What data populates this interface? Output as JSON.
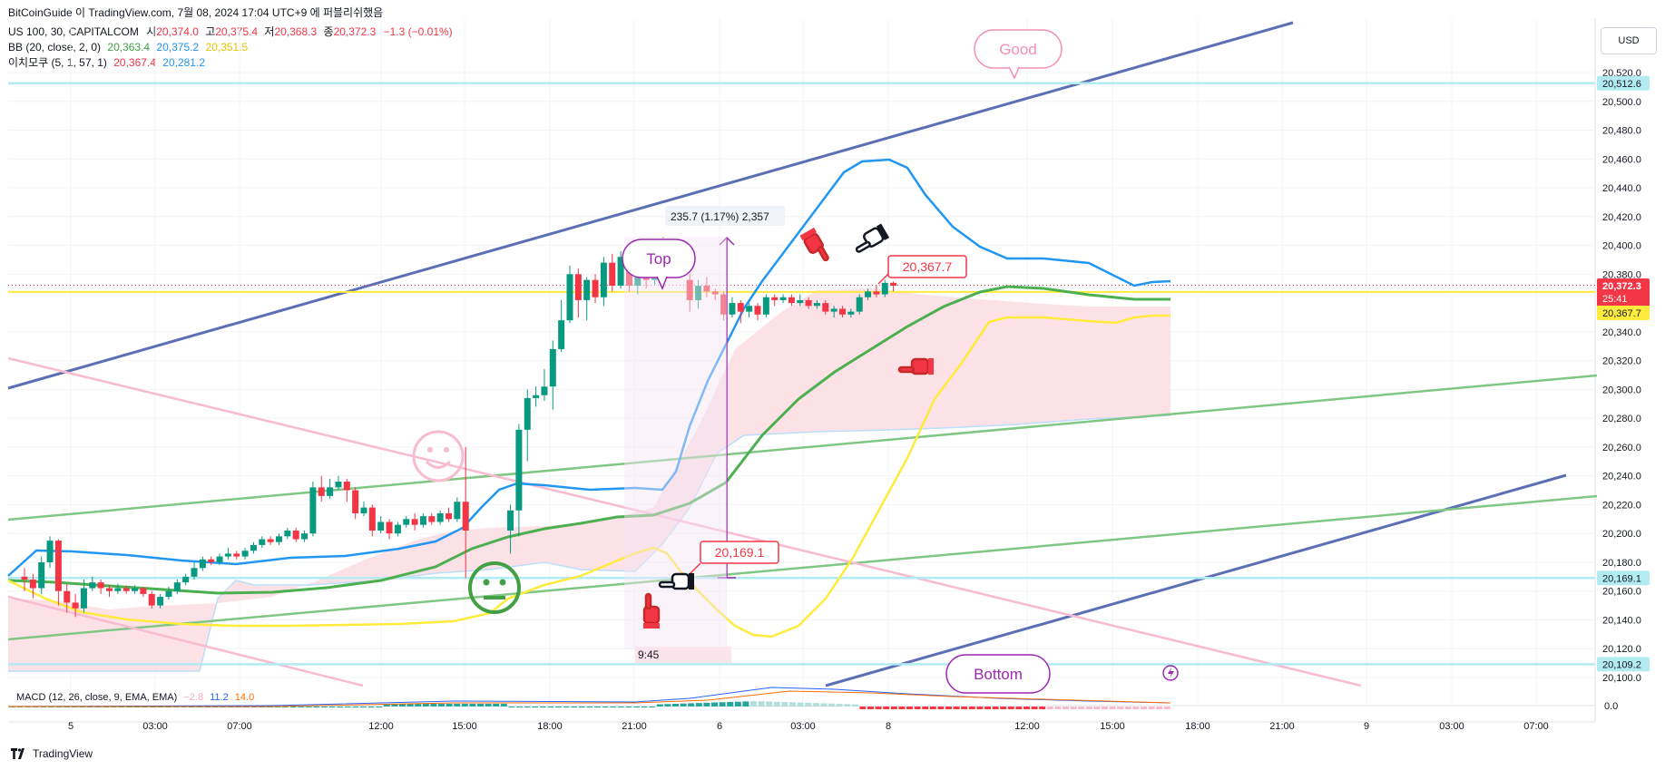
{
  "header": {
    "author": "BitCoinGuide 이 TradingView.com, 7월 08, 2024 17:04 UTC+9 에 퍼블리쉬했음",
    "symbol": "US 100, 30, CAPITALCOM",
    "ohlc": {
      "o_label": "시",
      "o": "20,374.0",
      "h_label": "고",
      "h": "20,375.4",
      "l_label": "저",
      "l": "20,368.3",
      "c_label": "종",
      "c": "20,372.3",
      "chg": "−1.3 (−0.01%)"
    },
    "bb": {
      "label": "BB (20, close, 2, 0)",
      "basis": "20,363.4",
      "upper": "20,375.2",
      "lower": "20,351.5"
    },
    "ma": {
      "label": "이치모쿠 (5, 1, 57, 1)",
      "v1": "20,367.4",
      "v2": "20,281.2"
    }
  },
  "currency": "USD",
  "macd": {
    "label": "MACD (12, 26, close, 9, EMA, EMA)",
    "hist": "−2.8",
    "macd": "11.2",
    "signal": "14.0"
  },
  "macd_axis": "0.0",
  "footer": "TradingView",
  "colors": {
    "up": "#089981",
    "down": "#f23645",
    "bb_upper": "#2196f3",
    "bb_basis": "#4caf50",
    "bb_lower": "#ffeb3b",
    "cloud": "#fcdde2",
    "trend_blue": "#5b6fb5",
    "trend_green": "#81c784",
    "trend_pink": "#f8bbd0",
    "hline": "#b2ebf2"
  },
  "chart_data": {
    "type": "candlestick",
    "y_ticks": [
      "20,520.0",
      "20,500.0",
      "20,480.0",
      "20,460.0",
      "20,440.0",
      "20,420.0",
      "20,400.0",
      "20,380.0",
      "20,340.0",
      "20,320.0",
      "20,300.0",
      "20,280.0",
      "20,260.0",
      "20,240.0",
      "20,220.0",
      "20,200.0",
      "20,180.0",
      "20,160.0",
      "20,140.0",
      "20,120.0",
      "20,100.0"
    ],
    "y_range": [
      20092,
      20530
    ],
    "x_ticks": [
      "5",
      "03:00",
      "07:00",
      "12:00",
      "15:00",
      "18:00",
      "21:00",
      "6",
      "03:00",
      "8",
      "12:00",
      "15:00",
      "18:00",
      "21:00",
      "9",
      "03:00",
      "07:00"
    ],
    "price_labels": {
      "top_line": "20,512.6",
      "last": "20,372.3",
      "countdown": "25:41",
      "ichimoku": "20,367.7",
      "low_line": "20,169.1",
      "bottom_line": "20,109.2"
    },
    "candles": [
      [
        20170,
        20168,
        20176,
        20160
      ],
      [
        20168,
        20162,
        20172,
        20155
      ],
      [
        20162,
        20180,
        20184,
        20158
      ],
      [
        20180,
        20195,
        20198,
        20176
      ],
      [
        20195,
        20160,
        20196,
        20150
      ],
      [
        20160,
        20152,
        20165,
        20145
      ],
      [
        20152,
        20148,
        20158,
        20142
      ],
      [
        20148,
        20162,
        20168,
        20145
      ],
      [
        20162,
        20166,
        20170,
        20160
      ],
      [
        20166,
        20162,
        20168,
        20158
      ],
      [
        20162,
        20160,
        20164,
        20156
      ],
      [
        20160,
        20162,
        20165,
        20158
      ],
      [
        20162,
        20160,
        20164,
        20158
      ],
      [
        20160,
        20162,
        20164,
        20158
      ],
      [
        20162,
        20158,
        20163,
        20156
      ],
      [
        20158,
        20150,
        20160,
        20148
      ],
      [
        20150,
        20156,
        20158,
        20148
      ],
      [
        20156,
        20160,
        20163,
        20154
      ],
      [
        20160,
        20166,
        20168,
        20158
      ],
      [
        20166,
        20170,
        20172,
        20164
      ],
      [
        20170,
        20176,
        20180,
        20168
      ],
      [
        20176,
        20182,
        20184,
        20174
      ],
      [
        20182,
        20180,
        20184,
        20178
      ],
      [
        20180,
        20184,
        20186,
        20178
      ],
      [
        20184,
        20186,
        20190,
        20182
      ],
      [
        20186,
        20184,
        20188,
        20182
      ],
      [
        20184,
        20188,
        20190,
        20182
      ],
      [
        20188,
        20192,
        20194,
        20186
      ],
      [
        20192,
        20196,
        20198,
        20190
      ],
      [
        20196,
        20194,
        20198,
        20192
      ],
      [
        20194,
        20198,
        20200,
        20192
      ],
      [
        20198,
        20202,
        20204,
        20196
      ],
      [
        20202,
        20196,
        20204,
        20194
      ],
      [
        20196,
        20200,
        20202,
        20194
      ],
      [
        20200,
        20232,
        20236,
        20198
      ],
      [
        20232,
        20226,
        20240,
        20222
      ],
      [
        20226,
        20232,
        20238,
        20224
      ],
      [
        20232,
        20236,
        20240,
        20230
      ],
      [
        20236,
        20230,
        20238,
        20222
      ],
      [
        20230,
        20214,
        20232,
        20210
      ],
      [
        20214,
        20218,
        20222,
        20212
      ],
      [
        20218,
        20202,
        20220,
        20198
      ],
      [
        20202,
        20208,
        20212,
        20200
      ],
      [
        20208,
        20200,
        20210,
        20196
      ],
      [
        20200,
        20206,
        20208,
        20198
      ],
      [
        20206,
        20210,
        20212,
        20204
      ],
      [
        20210,
        20206,
        20214,
        20202
      ],
      [
        20206,
        20212,
        20214,
        20204
      ],
      [
        20212,
        20208,
        20214,
        20206
      ],
      [
        20208,
        20214,
        20216,
        20206
      ],
      [
        20214,
        20210,
        20218,
        20208
      ],
      [
        20210,
        20222,
        20225,
        20208
      ],
      [
        20222,
        20202,
        20260,
        20169
      ],
      [
        20202,
        20216,
        20220,
        20186
      ],
      [
        20216,
        20272,
        20276,
        20198
      ],
      [
        20272,
        20294,
        20300,
        20250
      ],
      [
        20294,
        20296,
        20302,
        20288
      ],
      [
        20296,
        20302,
        20314,
        20292
      ],
      [
        20302,
        20328,
        20334,
        20286
      ],
      [
        20328,
        20348,
        20362,
        20326
      ],
      [
        20348,
        20380,
        20386,
        20346
      ],
      [
        20380,
        20362,
        20384,
        20350
      ],
      [
        20362,
        20376,
        20378,
        20348
      ],
      [
        20376,
        20364,
        20380,
        20360
      ],
      [
        20364,
        20388,
        20392,
        20358
      ],
      [
        20388,
        20372,
        20394,
        20368
      ],
      [
        20372,
        20392,
        20396,
        20370
      ],
      [
        20392,
        20372,
        20398,
        20368
      ],
      [
        20372,
        20384,
        20388,
        20366
      ],
      [
        20384,
        20376,
        20396,
        20370
      ],
      [
        20376,
        20388,
        20392,
        20372
      ],
      [
        20388,
        20376,
        20406,
        20370
      ],
      [
        20376,
        20362,
        20380,
        20354
      ],
      [
        20362,
        20372,
        20376,
        20356
      ],
      [
        20372,
        20368,
        20378,
        20364
      ],
      [
        20368,
        20366,
        20370,
        20362
      ],
      [
        20366,
        20352,
        20368,
        20348
      ],
      [
        20352,
        20360,
        20364,
        20350
      ],
      [
        20360,
        20354,
        20362,
        20346
      ],
      [
        20354,
        20358,
        20360,
        20350
      ],
      [
        20358,
        20352,
        20360,
        20348
      ],
      [
        20352,
        20364,
        20366,
        20350
      ],
      [
        20364,
        20362,
        20366,
        20358
      ],
      [
        20362,
        20364,
        20366,
        20360
      ],
      [
        20364,
        20360,
        20366,
        20358
      ],
      [
        20360,
        20362,
        20366,
        20358
      ],
      [
        20362,
        20358,
        20364,
        20356
      ],
      [
        20358,
        20360,
        20362,
        20356
      ],
      [
        20360,
        20354,
        20362,
        20352
      ],
      [
        20354,
        20356,
        20358,
        20350
      ],
      [
        20356,
        20352,
        20358,
        20350
      ],
      [
        20352,
        20354,
        20356,
        20350
      ],
      [
        20354,
        20364,
        20366,
        20352
      ],
      [
        20364,
        20368,
        20370,
        20362
      ],
      [
        20368,
        20366,
        20372,
        20364
      ],
      [
        20366,
        20374,
        20376,
        20364
      ],
      [
        20374,
        20372,
        20375,
        20368
      ]
    ],
    "annotations": {
      "measure": "235.7 (1.17%) 2,357",
      "top": "Top",
      "good": "Good",
      "bottom": "Bottom",
      "callout_low": "20,169.1",
      "callout_high": "20,367.7",
      "time_label": "9:45"
    }
  }
}
